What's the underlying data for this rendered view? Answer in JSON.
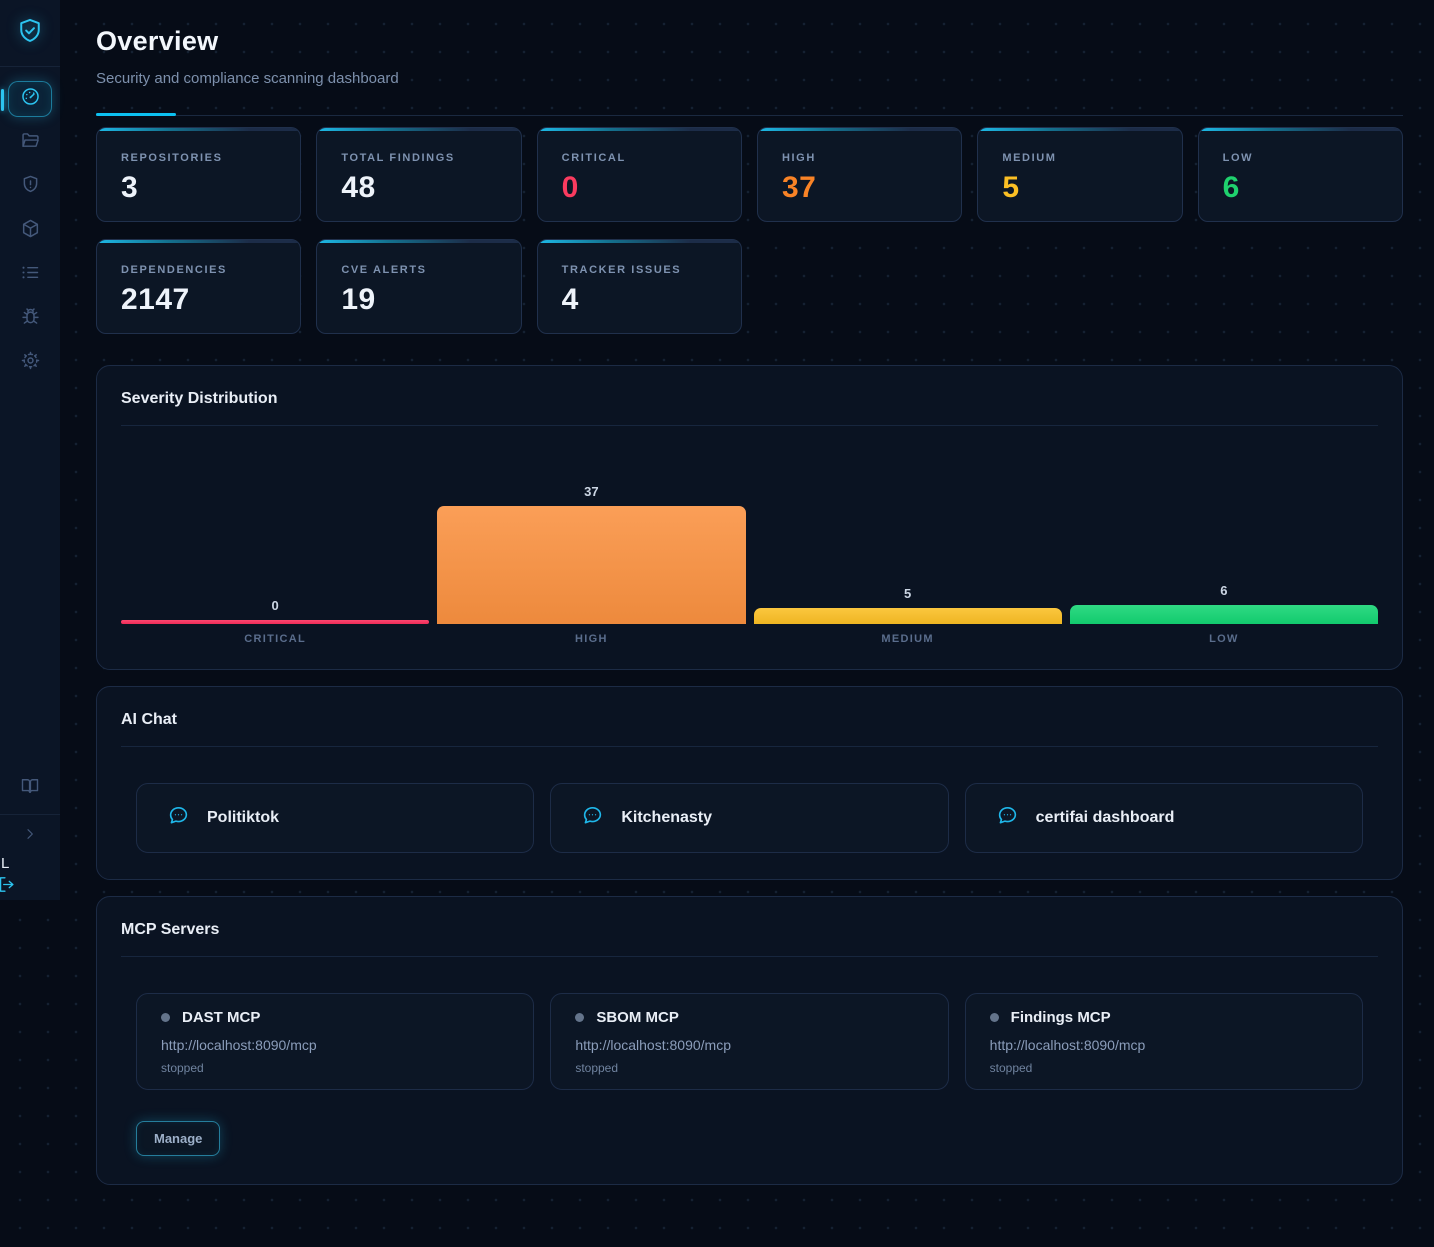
{
  "app": {
    "logo_icon": "shield-check-icon"
  },
  "sidebar": {
    "nav_items": [
      {
        "name": "dashboard",
        "icon": "gauge-icon",
        "active": true
      },
      {
        "name": "repositories",
        "icon": "folder-icon",
        "active": false
      },
      {
        "name": "findings",
        "icon": "shield-alert-icon",
        "active": false
      },
      {
        "name": "dependencies",
        "icon": "package-icon",
        "active": false
      },
      {
        "name": "tracker",
        "icon": "list-icon",
        "active": false
      },
      {
        "name": "cve",
        "icon": "bug-icon",
        "active": false
      },
      {
        "name": "settings",
        "icon": "gear-icon",
        "active": false
      }
    ],
    "footer": {
      "user_initial": "L"
    }
  },
  "header": {
    "title": "Overview",
    "subtitle": "Security and compliance scanning dashboard"
  },
  "stats": [
    {
      "label": "REPOSITORIES",
      "value": "3",
      "color": "#eef3fa"
    },
    {
      "label": "TOTAL FINDINGS",
      "value": "48",
      "color": "#eef3fa"
    },
    {
      "label": "CRITICAL",
      "value": "0",
      "color": "#fb3b5f"
    },
    {
      "label": "HIGH",
      "value": "37",
      "color": "#f98326"
    },
    {
      "label": "MEDIUM",
      "value": "5",
      "color": "#fbbf24"
    },
    {
      "label": "LOW",
      "value": "6",
      "color": "#1fd26e"
    },
    {
      "label": "DEPENDENCIES",
      "value": "2147",
      "color": "#eef3fa"
    },
    {
      "label": "CVE ALERTS",
      "value": "19",
      "color": "#eef3fa"
    },
    {
      "label": "TRACKER ISSUES",
      "value": "4",
      "color": "#eef3fa"
    }
  ],
  "chart_data": {
    "type": "bar",
    "title": "Severity Distribution",
    "categories": [
      "CRITICAL",
      "HIGH",
      "MEDIUM",
      "LOW"
    ],
    "values": [
      0,
      37,
      5,
      6
    ],
    "colors": [
      "#fb2e5c",
      "#fa9140",
      "#fbbf24",
      "#13d573"
    ],
    "ylim": [
      0,
      37
    ],
    "grid": false,
    "value_labels": true
  },
  "ai_chat": {
    "title": "AI Chat",
    "items": [
      {
        "label": "Politiktok",
        "icon": "chat-bubble-icon"
      },
      {
        "label": "Kitchenasty",
        "icon": "chat-bubble-icon"
      },
      {
        "label": "certifai dashboard",
        "icon": "chat-bubble-icon"
      }
    ]
  },
  "mcp": {
    "title": "MCP Servers",
    "servers": [
      {
        "name": "DAST MCP",
        "url": "http://localhost:8090/mcp",
        "status": "stopped"
      },
      {
        "name": "SBOM MCP",
        "url": "http://localhost:8090/mcp",
        "status": "stopped"
      },
      {
        "name": "Findings MCP",
        "url": "http://localhost:8090/mcp",
        "status": "stopped"
      }
    ],
    "manage_label": "Manage"
  }
}
